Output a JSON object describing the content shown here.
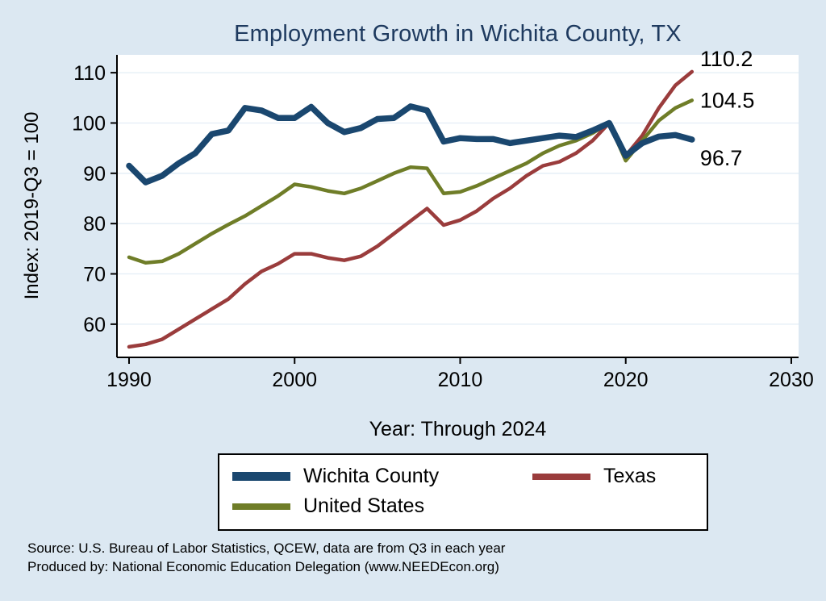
{
  "colors": {
    "background": "#dce8f2",
    "title": "#1e3a5f",
    "axis": "#000000",
    "gridline": "#e3edf6",
    "plot_background": "#ffffff"
  },
  "chart_data": {
    "type": "line",
    "title": "Employment Growth in Wichita County, TX",
    "xlabel": "Year: Through 2024",
    "ylabel": "Index: 2019-Q3 = 100",
    "x_start": 1990,
    "x_ticks": [
      1990,
      2000,
      2010,
      2020,
      2030
    ],
    "y_ticks": [
      60,
      70,
      80,
      90,
      100,
      110
    ],
    "xlim": [
      1989.27,
      2030.44
    ],
    "ylim": [
      53.4,
      113.55
    ],
    "grid": "horizontal",
    "legend_position": "bottom",
    "series": [
      {
        "name": "Wichita  County",
        "color": "#1a476f",
        "end_label": "96.7",
        "values": [
          91.5,
          88.2,
          89.5,
          92.0,
          94.0,
          97.8,
          98.5,
          103.0,
          102.5,
          101.0,
          101.0,
          103.2,
          100.0,
          98.2,
          99.0,
          100.8,
          101.0,
          103.3,
          102.5,
          96.3,
          97.0,
          96.8,
          96.8,
          96.0,
          96.5,
          97.0,
          97.5,
          97.2,
          98.5,
          100.0,
          93.5,
          96.0,
          97.3,
          97.6,
          96.7
        ]
      },
      {
        "name": "Texas",
        "color": "#9a3c3c",
        "end_label": "110.2",
        "values": [
          55.5,
          56.0,
          57.0,
          59.0,
          61.0,
          63.0,
          65.0,
          68.0,
          70.5,
          72.0,
          74.0,
          74.0,
          73.2,
          72.7,
          73.5,
          75.5,
          78.0,
          80.5,
          83.0,
          79.7,
          80.7,
          82.5,
          85.0,
          87.0,
          89.5,
          91.5,
          92.3,
          94.0,
          96.5,
          100.0,
          93.5,
          97.5,
          103.0,
          107.5,
          110.2
        ]
      },
      {
        "name": "United States",
        "color": "#6f7d28",
        "end_label": "104.5",
        "values": [
          73.3,
          72.2,
          72.5,
          74.0,
          76.0,
          78.0,
          79.8,
          81.5,
          83.5,
          85.5,
          87.8,
          87.3,
          86.5,
          86.0,
          87.0,
          88.5,
          90.0,
          91.2,
          91.0,
          86.0,
          86.3,
          87.5,
          89.0,
          90.5,
          92.0,
          94.0,
          95.5,
          96.5,
          98.0,
          100.0,
          92.5,
          96.5,
          100.5,
          103.0,
          104.5
        ]
      }
    ]
  },
  "footer": {
    "source": "Source: U.S. Bureau of Labor Statistics, QCEW, data are from Q3 in each year",
    "produced_by": "Produced by: National Economic Education Delegation (www.NEEDEcon.org)"
  }
}
